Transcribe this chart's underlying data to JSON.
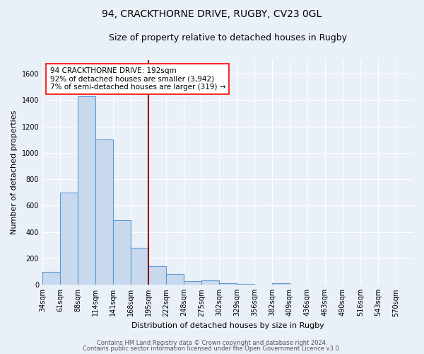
{
  "title": "94, CRACKTHORNE DRIVE, RUGBY, CV23 0GL",
  "subtitle": "Size of property relative to detached houses in Rugby",
  "xlabel": "Distribution of detached houses by size in Rugby",
  "ylabel": "Number of detached properties",
  "bar_color": "#c8d9ed",
  "bar_edge_color": "#5b9bd5",
  "bar_heights": [
    100,
    700,
    1430,
    1100,
    490,
    280,
    140,
    80,
    30,
    35,
    15,
    5,
    3,
    15,
    2,
    0,
    0,
    0,
    0,
    0,
    0
  ],
  "bin_labels": [
    "34sqm",
    "61sqm",
    "88sqm",
    "114sqm",
    "141sqm",
    "168sqm",
    "195sqm",
    "222sqm",
    "248sqm",
    "275sqm",
    "302sqm",
    "329sqm",
    "356sqm",
    "382sqm",
    "409sqm",
    "436sqm",
    "463sqm",
    "490sqm",
    "516sqm",
    "543sqm",
    "570sqm"
  ],
  "vline_color": "#8b0000",
  "vline_x": 6.0,
  "annotation_line1": "94 CRACKTHORNE DRIVE: 192sqm",
  "annotation_line2": "92% of detached houses are smaller (3,942)",
  "annotation_line3": "7% of semi-detached houses are larger (319) →",
  "ylim": [
    0,
    1700
  ],
  "yticks": [
    0,
    200,
    400,
    600,
    800,
    1000,
    1200,
    1400,
    1600
  ],
  "footer_line1": "Contains HM Land Registry data © Crown copyright and database right 2024.",
  "footer_line2": "Contains public sector information licensed under the Open Government Licence v3.0.",
  "bg_color": "#eaf0f8",
  "grid_color": "#ffffff",
  "title_fontsize": 10,
  "subtitle_fontsize": 9,
  "ylabel_fontsize": 8,
  "xlabel_fontsize": 8,
  "tick_fontsize": 7,
  "annotation_fontsize": 7.5,
  "footer_fontsize": 6
}
